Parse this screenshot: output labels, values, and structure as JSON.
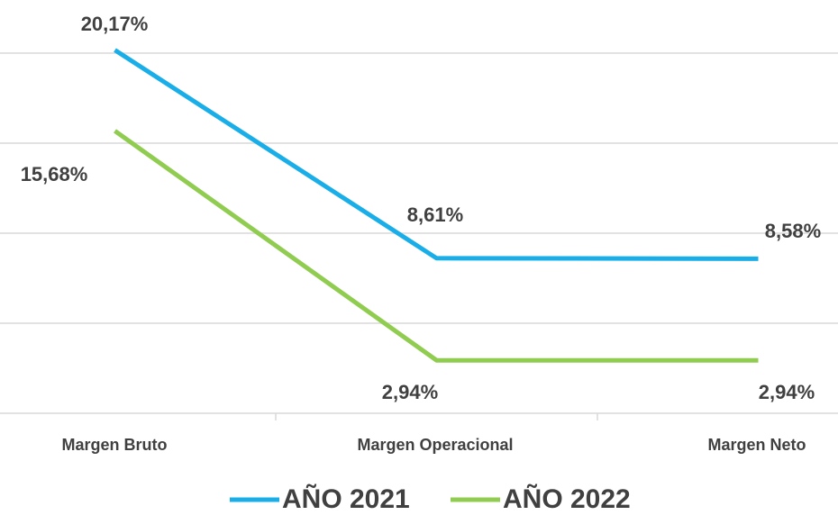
{
  "chart_data": {
    "type": "line",
    "categories": [
      "Margen Bruto",
      "Margen Operacional",
      "Margen Neto"
    ],
    "series": [
      {
        "name": "AÑO 2021",
        "color": "#1aaee8",
        "values": [
          20.17,
          8.61,
          8.58
        ],
        "value_labels": [
          "20,17%",
          "8,61%",
          "8,58%"
        ]
      },
      {
        "name": "AÑO 2022",
        "color": "#8fcc50",
        "values": [
          15.68,
          2.94,
          2.94
        ],
        "value_labels": [
          "15,68%",
          "2,94%",
          "2,94%"
        ]
      }
    ],
    "ylim": [
      0,
      20
    ],
    "yticks": [
      0,
      5,
      10,
      15,
      20
    ],
    "grid": true,
    "legend": "bottom"
  }
}
